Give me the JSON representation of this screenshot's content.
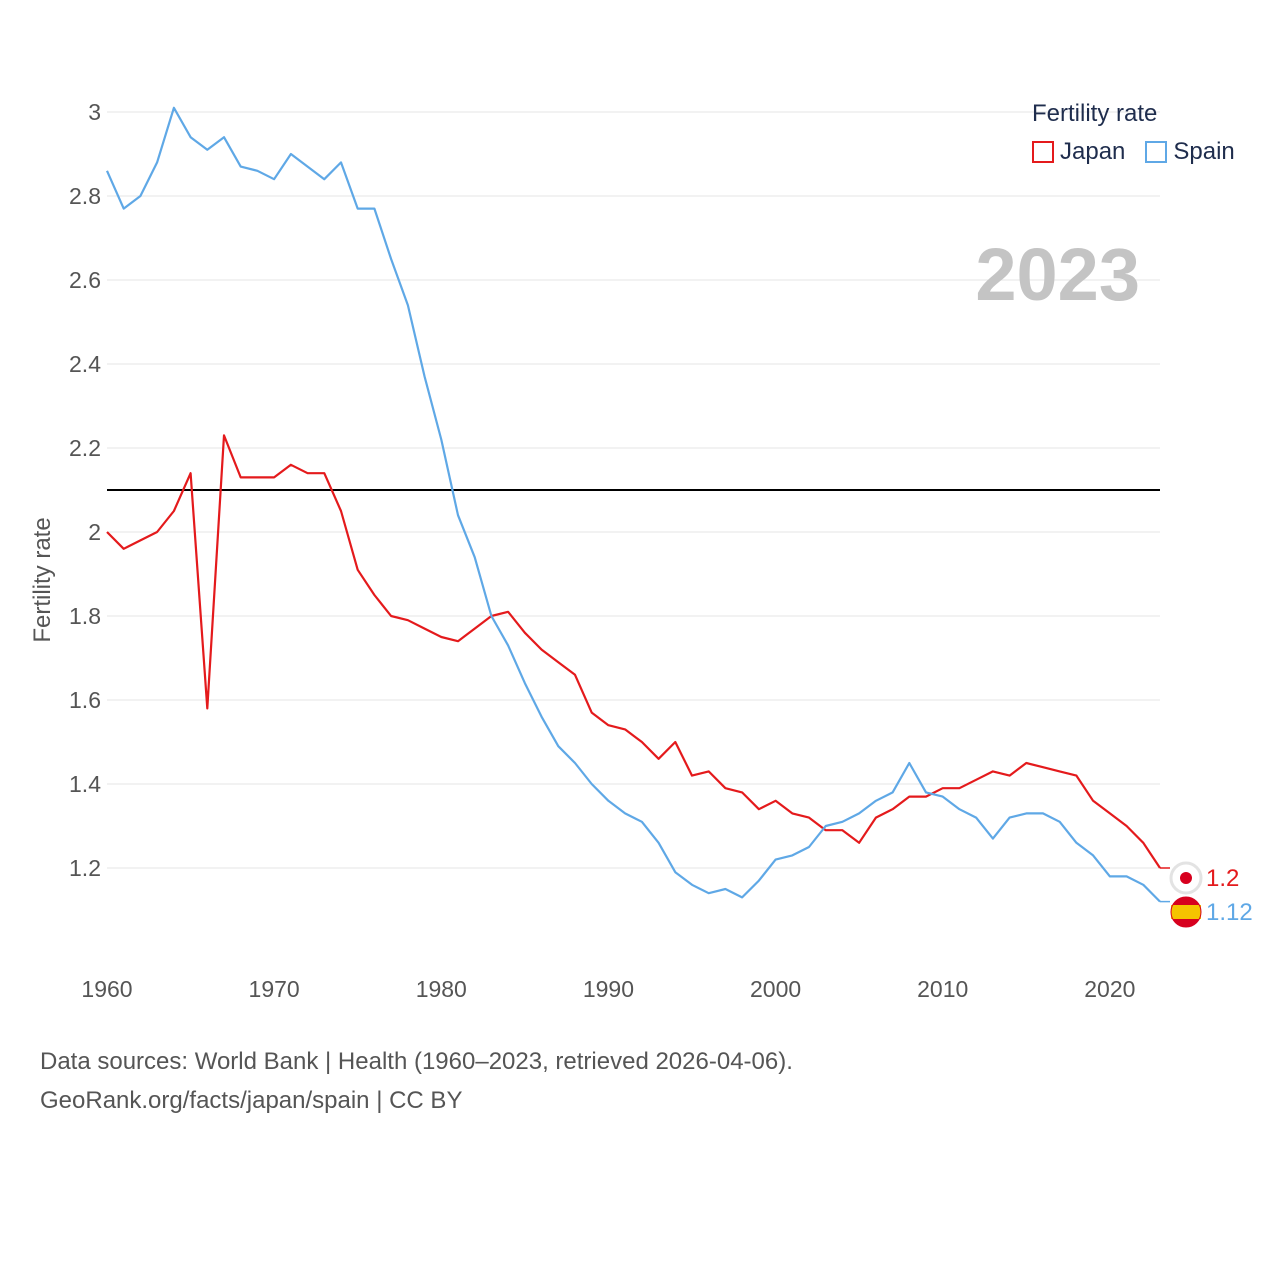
{
  "legend": {
    "title": "Fertility rate",
    "items": [
      {
        "name": "Japan",
        "color": "#e41a1c"
      },
      {
        "name": "Spain",
        "color": "#5fa8e6"
      }
    ]
  },
  "year_label": "2023",
  "footer": {
    "line1": "Data sources: World Bank | Health (1960–2023, retrieved 2026-04-06).",
    "line2": "GeoRank.org/facts/japan/spain | CC BY"
  },
  "chart_data": {
    "type": "line",
    "title": "Fertility rate",
    "xlabel": "",
    "ylabel": "Fertility rate",
    "xlim": [
      1960,
      2023
    ],
    "ylim": [
      1.0,
      3.0
    ],
    "x_ticks": [
      1960,
      1970,
      1980,
      1990,
      2000,
      2010,
      2020
    ],
    "y_ticks": [
      1.2,
      1.4,
      1.6,
      1.8,
      2,
      2.2,
      2.4,
      2.6,
      2.8,
      3
    ],
    "grid": true,
    "reference_line": {
      "value": 2.1,
      "color": "#000000"
    },
    "x": [
      1960,
      1961,
      1962,
      1963,
      1964,
      1965,
      1966,
      1967,
      1968,
      1969,
      1970,
      1971,
      1972,
      1973,
      1974,
      1975,
      1976,
      1977,
      1978,
      1979,
      1980,
      1981,
      1982,
      1983,
      1984,
      1985,
      1986,
      1987,
      1988,
      1989,
      1990,
      1991,
      1992,
      1993,
      1994,
      1995,
      1996,
      1997,
      1998,
      1999,
      2000,
      2001,
      2002,
      2003,
      2004,
      2005,
      2006,
      2007,
      2008,
      2009,
      2010,
      2011,
      2012,
      2013,
      2014,
      2015,
      2016,
      2017,
      2018,
      2019,
      2020,
      2021,
      2022,
      2023
    ],
    "series": [
      {
        "name": "Japan",
        "color": "#e41a1c",
        "end_label": "1.2",
        "values": [
          2.0,
          1.96,
          1.98,
          2.0,
          2.05,
          2.14,
          1.58,
          2.23,
          2.13,
          2.13,
          2.13,
          2.16,
          2.14,
          2.14,
          2.05,
          1.91,
          1.85,
          1.8,
          1.79,
          1.77,
          1.75,
          1.74,
          1.77,
          1.8,
          1.81,
          1.76,
          1.72,
          1.69,
          1.66,
          1.57,
          1.54,
          1.53,
          1.5,
          1.46,
          1.5,
          1.42,
          1.43,
          1.39,
          1.38,
          1.34,
          1.36,
          1.33,
          1.32,
          1.29,
          1.29,
          1.26,
          1.32,
          1.34,
          1.37,
          1.37,
          1.39,
          1.39,
          1.41,
          1.43,
          1.42,
          1.45,
          1.44,
          1.43,
          1.42,
          1.36,
          1.33,
          1.3,
          1.26,
          1.2
        ]
      },
      {
        "name": "Spain",
        "color": "#5fa8e6",
        "end_label": "1.12",
        "values": [
          2.86,
          2.77,
          2.8,
          2.88,
          3.01,
          2.94,
          2.91,
          2.94,
          2.87,
          2.86,
          2.84,
          2.9,
          2.87,
          2.84,
          2.88,
          2.77,
          2.77,
          2.65,
          2.54,
          2.37,
          2.22,
          2.04,
          1.94,
          1.8,
          1.73,
          1.64,
          1.56,
          1.49,
          1.45,
          1.4,
          1.36,
          1.33,
          1.31,
          1.26,
          1.19,
          1.16,
          1.14,
          1.15,
          1.13,
          1.17,
          1.22,
          1.23,
          1.25,
          1.3,
          1.31,
          1.33,
          1.36,
          1.38,
          1.45,
          1.38,
          1.37,
          1.34,
          1.32,
          1.27,
          1.32,
          1.33,
          1.33,
          1.31,
          1.26,
          1.23,
          1.18,
          1.18,
          1.16,
          1.12
        ]
      }
    ]
  }
}
